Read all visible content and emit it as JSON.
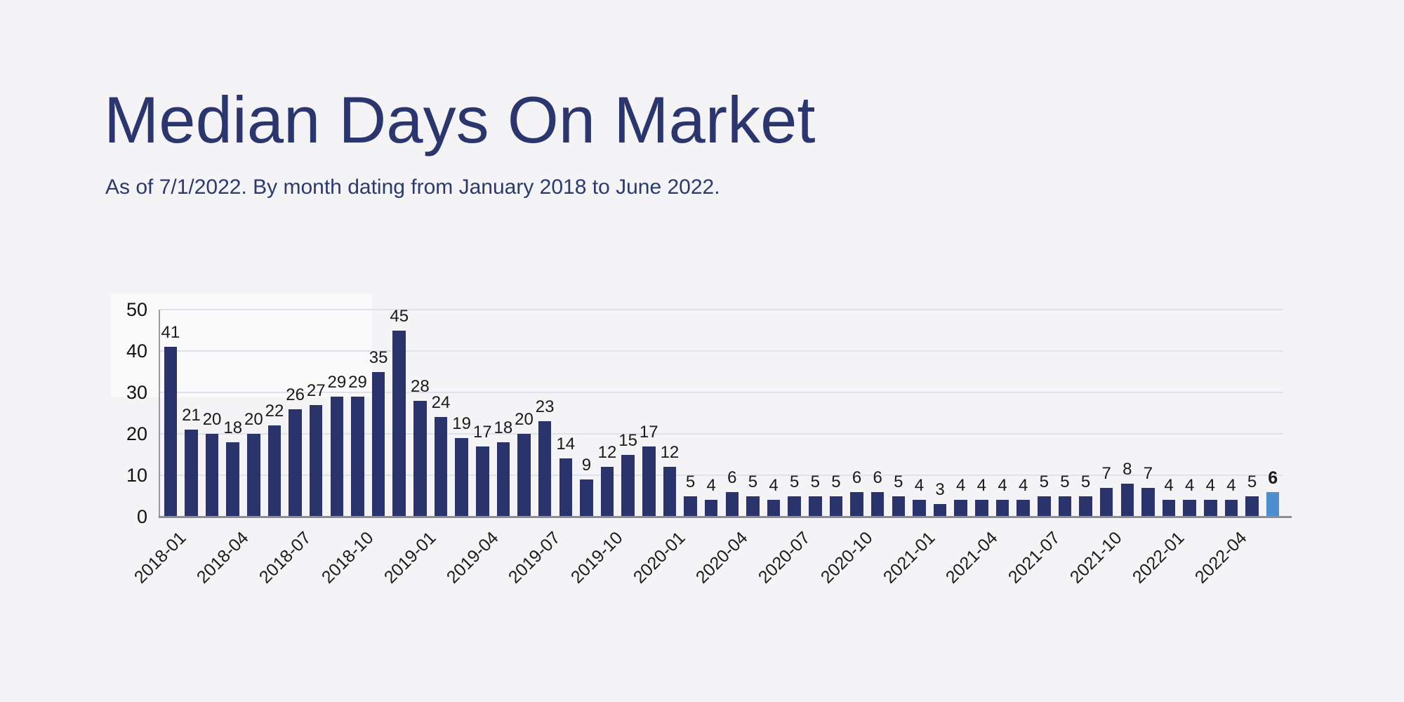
{
  "page": {
    "title": "Median Days On Market",
    "subtitle": "As of 7/1/2022. By month dating from January 2018 to June 2022."
  },
  "colors": {
    "background": "#f4f4f6",
    "title_text": "#2b366f",
    "subtitle_text": "#2c396f",
    "bar": "#2a336a",
    "bar_highlight": "#4d8ed0",
    "gridline": "#dce3ef",
    "axis_line": "#8d8d8d",
    "value_label": "#1a1a1a",
    "tick_label": "#1b1b1b"
  },
  "chart_data": {
    "type": "bar",
    "title": "Median Days On Market",
    "subtitle": "As of 7/1/2022. By month dating from January 2018 to June 2022.",
    "xlabel": "",
    "ylabel": "",
    "ylim": [
      0,
      50
    ],
    "y_ticks": [
      0,
      10,
      20,
      30,
      40,
      50
    ],
    "grid": "horizontal",
    "legend": "none",
    "categories": [
      "2018-01",
      "2018-02",
      "2018-03",
      "2018-04",
      "2018-05",
      "2018-06",
      "2018-07",
      "2018-08",
      "2018-09",
      "2018-10",
      "2018-11",
      "2018-12",
      "2019-01",
      "2019-02",
      "2019-03",
      "2019-04",
      "2019-05",
      "2019-06",
      "2019-07",
      "2019-08",
      "2019-09",
      "2019-10",
      "2019-11",
      "2019-12",
      "2020-01",
      "2020-02",
      "2020-03",
      "2020-04",
      "2020-05",
      "2020-06",
      "2020-07",
      "2020-08",
      "2020-09",
      "2020-10",
      "2020-11",
      "2020-12",
      "2021-01",
      "2021-02",
      "2021-03",
      "2021-04",
      "2021-05",
      "2021-06",
      "2021-07",
      "2021-08",
      "2021-09",
      "2021-10",
      "2021-11",
      "2021-12",
      "2022-01",
      "2022-02",
      "2022-03",
      "2022-04",
      "2022-05",
      "2022-06"
    ],
    "values": [
      41,
      21,
      20,
      18,
      20,
      22,
      26,
      27,
      29,
      29,
      35,
      45,
      28,
      24,
      19,
      17,
      18,
      20,
      23,
      14,
      9,
      12,
      15,
      17,
      12,
      5,
      4,
      6,
      5,
      4,
      5,
      5,
      5,
      6,
      6,
      5,
      4,
      3,
      4,
      4,
      4,
      4,
      5,
      5,
      5,
      7,
      8,
      7,
      4,
      4,
      4,
      4,
      5,
      6
    ],
    "x_tick_labels": [
      "2018-01",
      "2018-04",
      "2018-07",
      "2018-10",
      "2019-01",
      "2019-04",
      "2019-07",
      "2019-10",
      "2020-01",
      "2020-04",
      "2020-07",
      "2020-10",
      "2021-01",
      "2021-04",
      "2021-07",
      "2021-10",
      "2022-01",
      "2022-04"
    ],
    "x_tick_every": 3,
    "highlight_index": 53,
    "highlight_color": "#4d8ed0",
    "bar_color": "#2a336a"
  }
}
